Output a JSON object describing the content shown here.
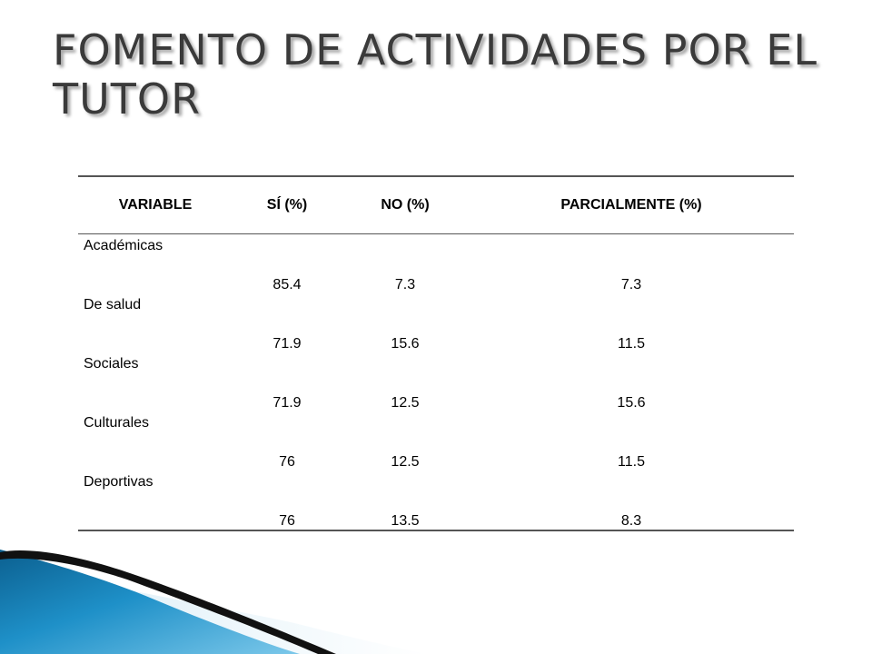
{
  "slide": {
    "title": "FOMENTO DE ACTIVIDADES POR EL TUTOR"
  },
  "table": {
    "headers": [
      "VARIABLE",
      "SÍ (%)",
      "NO (%)",
      "PARCIALMENTE (%)"
    ],
    "rows": [
      [
        "Académicas",
        "85.4",
        "7.3",
        "7.3"
      ],
      [
        "De salud",
        "71.9",
        "15.6",
        "11.5"
      ],
      [
        "Sociales",
        "71.9",
        "12.5",
        "15.6"
      ],
      [
        "Culturales",
        "76",
        "12.5",
        "11.5"
      ],
      [
        "Deportivas",
        "76",
        "13.5",
        "8.3"
      ]
    ]
  },
  "colors": {
    "title": "#3a3a3a",
    "accent_blue": "#1e90c8",
    "accent_dark": "#111111"
  }
}
